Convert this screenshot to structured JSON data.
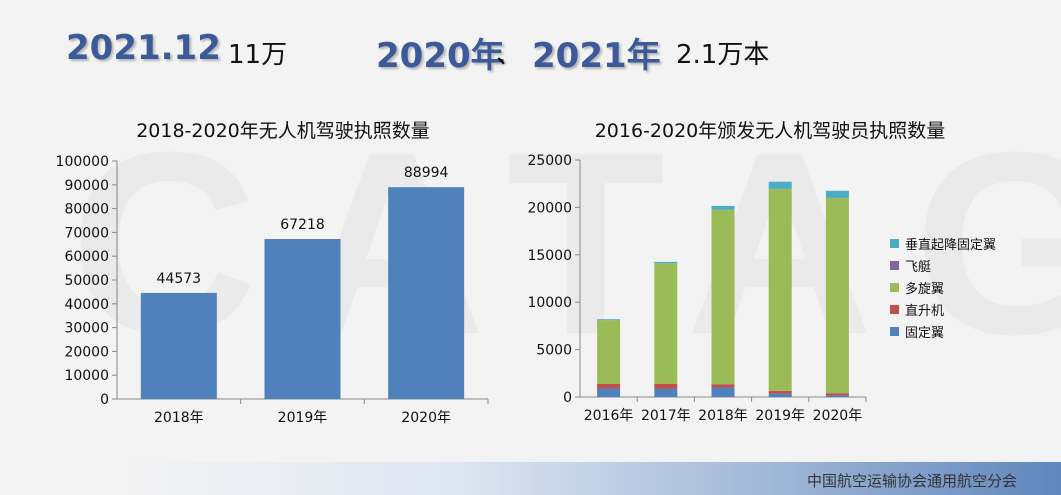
{
  "header": {
    "date": "2021.12",
    "count1": "11万",
    "year1": "2020年",
    "sep": "、",
    "year2": "2021年",
    "count2": "2.1万本"
  },
  "footer": {
    "org": "中国航空运输协会通用航空分会"
  },
  "watermark": {
    "text": "CATAG"
  },
  "colors": {
    "blue": "#4f81bd",
    "red": "#c0504d",
    "green": "#9bbb59",
    "purple": "#8064a2",
    "teal": "#4bacc6"
  },
  "chart_data": [
    {
      "type": "bar",
      "title": "2018-2020年无人机驾驶执照数量",
      "categories": [
        "2018年",
        "2019年",
        "2020年"
      ],
      "values": [
        44573,
        67218,
        88994
      ],
      "ylim": [
        0,
        100000
      ],
      "yticks": [
        0,
        10000,
        20000,
        30000,
        40000,
        50000,
        60000,
        70000,
        80000,
        90000,
        100000
      ],
      "grid": false
    },
    {
      "type": "bar",
      "stacked": true,
      "title": "2016-2020年颁发无人机驾驶员执照数量",
      "categories": [
        "2016年",
        "2017年",
        "2018年",
        "2019年",
        "2020年"
      ],
      "ylim": [
        0,
        25000
      ],
      "yticks": [
        0,
        5000,
        10000,
        15000,
        20000,
        25000
      ],
      "legend_position": "right",
      "series": [
        {
          "name": "固定翼",
          "color": "#4f81bd",
          "values": [
            900,
            850,
            1000,
            350,
            150
          ]
        },
        {
          "name": "直升机",
          "color": "#c0504d",
          "values": [
            500,
            550,
            350,
            300,
            250
          ]
        },
        {
          "name": "多旋翼",
          "color": "#9bbb59",
          "values": [
            6700,
            12700,
            18400,
            21300,
            20600
          ]
        },
        {
          "name": "飞艇",
          "color": "#8064a2",
          "values": [
            5,
            5,
            5,
            5,
            5
          ]
        },
        {
          "name": "垂直起降固定翼",
          "color": "#4bacc6",
          "values": [
            100,
            150,
            400,
            750,
            750
          ]
        }
      ]
    }
  ]
}
